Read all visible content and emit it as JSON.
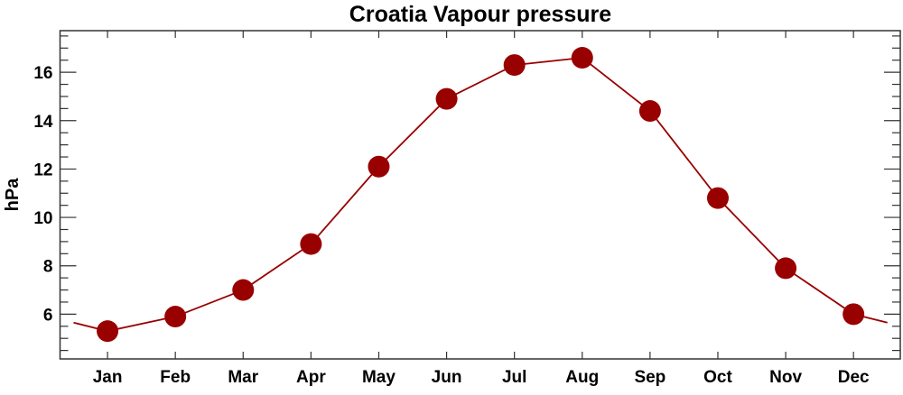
{
  "chart_data": {
    "type": "line",
    "title": "Croatia Vapour pressure",
    "xlabel": "",
    "ylabel": "hPa",
    "categories": [
      "Jan",
      "Feb",
      "Mar",
      "Apr",
      "May",
      "Jun",
      "Jul",
      "Aug",
      "Sep",
      "Oct",
      "Nov",
      "Dec"
    ],
    "series": [
      {
        "name": "Vapour pressure",
        "values": [
          5.3,
          5.9,
          7.0,
          8.9,
          12.1,
          14.9,
          16.3,
          16.6,
          14.4,
          10.8,
          7.9,
          6.0
        ],
        "color": "#990000"
      }
    ],
    "yticks": [
      6,
      8,
      10,
      12,
      14,
      16
    ],
    "ylim": [
      4.15,
      17.72
    ],
    "grid": false,
    "legend": "none"
  }
}
